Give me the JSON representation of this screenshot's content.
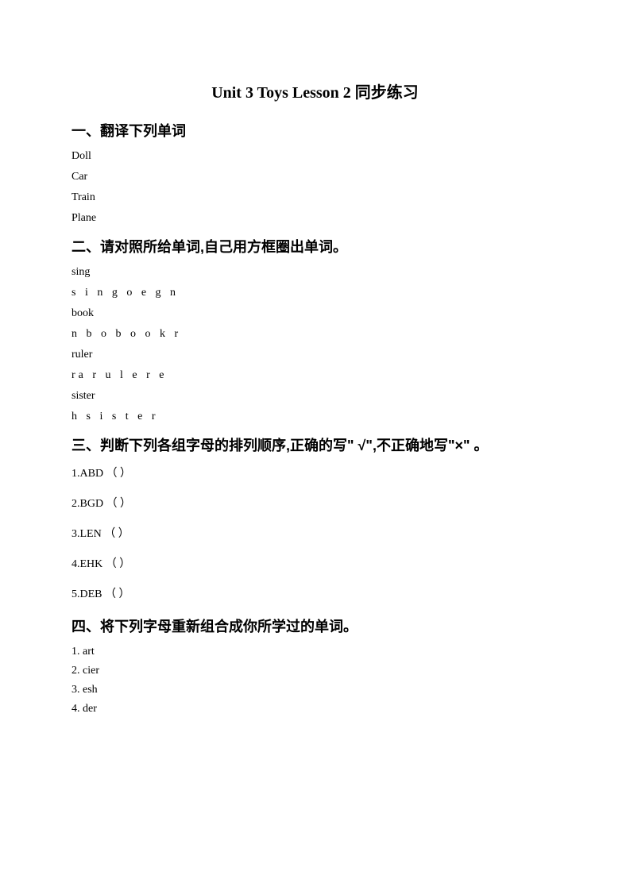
{
  "title": "Unit 3 Toys Lesson 2 同步练习",
  "section1": {
    "heading": "一、翻译下列单词",
    "items": [
      "Doll",
      "Car",
      "Train",
      "Plane"
    ]
  },
  "section2": {
    "heading": "二、请对照所给单词,自己用方框圈出单词。",
    "pairs": [
      {
        "word": "sing",
        "letters": "s i n g o e g n"
      },
      {
        "word": "book",
        "letters": "n b o b o o k r"
      },
      {
        "word": "ruler",
        "letters": "ra r u l e r e"
      },
      {
        "word": "sister",
        "letters": "h s i s t e r"
      }
    ]
  },
  "section3": {
    "heading": "三、判断下列各组字母的排列顺序,正确的写\" √\",不正确地写\"×\" 。",
    "items": [
      "1.ABD （ ）",
      "2.BGD （ ）",
      "3.LEN （ ）",
      "4.EHK （ ）",
      "5.DEB （ ）"
    ]
  },
  "section4": {
    "heading": "四、将下列字母重新组合成你所学过的单词。",
    "items": [
      "1. art",
      "2. cier",
      "3. esh",
      "4. der"
    ]
  }
}
